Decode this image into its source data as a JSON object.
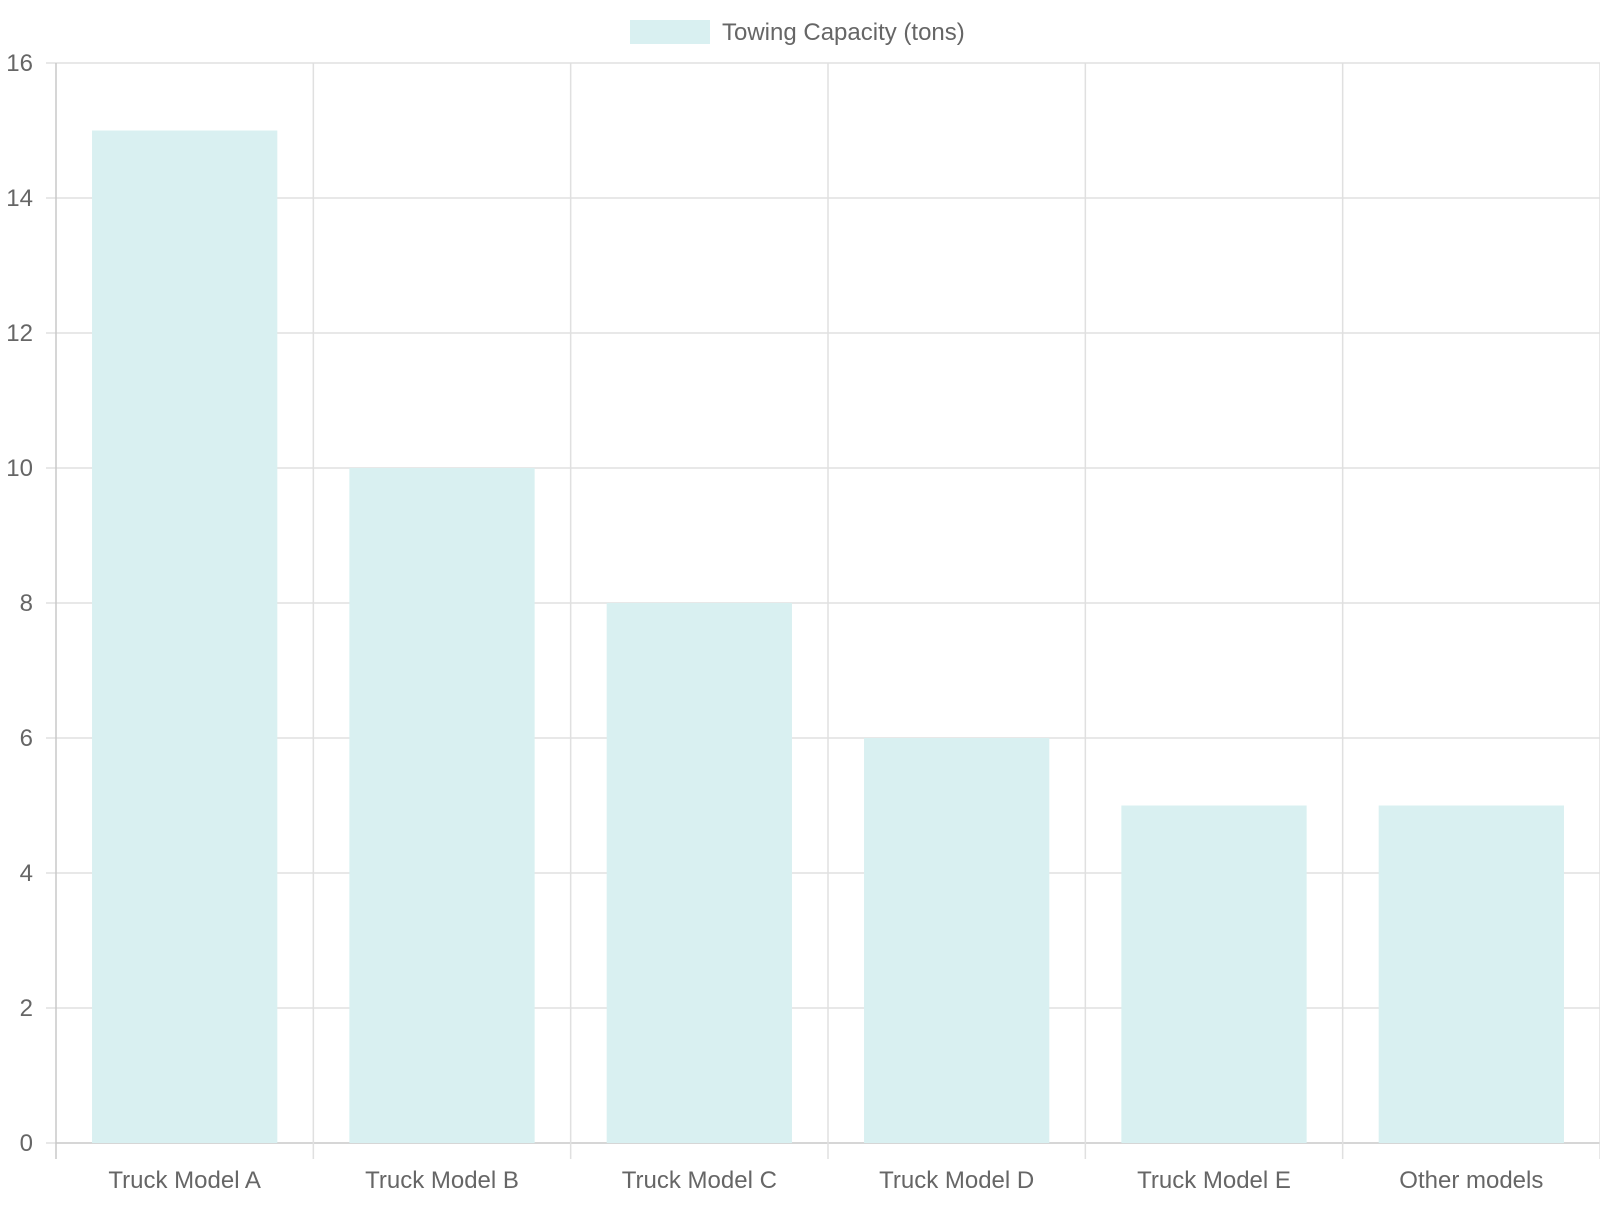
{
  "chart_data": {
    "type": "bar",
    "categories": [
      "Truck Model A",
      "Truck Model B",
      "Truck Model C",
      "Truck Model D",
      "Truck Model E",
      "Other models"
    ],
    "series": [
      {
        "name": "Towing Capacity (tons)",
        "values": [
          15,
          10,
          8,
          6,
          5,
          5
        ],
        "color": "#d9f0f1"
      }
    ],
    "title": "",
    "xlabel": "",
    "ylabel": "",
    "ylim": [
      0,
      16
    ],
    "yticks": [
      "0",
      "2",
      "4",
      "6",
      "8",
      "10",
      "12",
      "14",
      "16"
    ],
    "grid": true,
    "legend_position": "top-center"
  },
  "colors": {
    "grid": "#e0e0e0",
    "axis": "#c8c8c8",
    "text": "#666666",
    "bar": "#d9f0f1"
  }
}
